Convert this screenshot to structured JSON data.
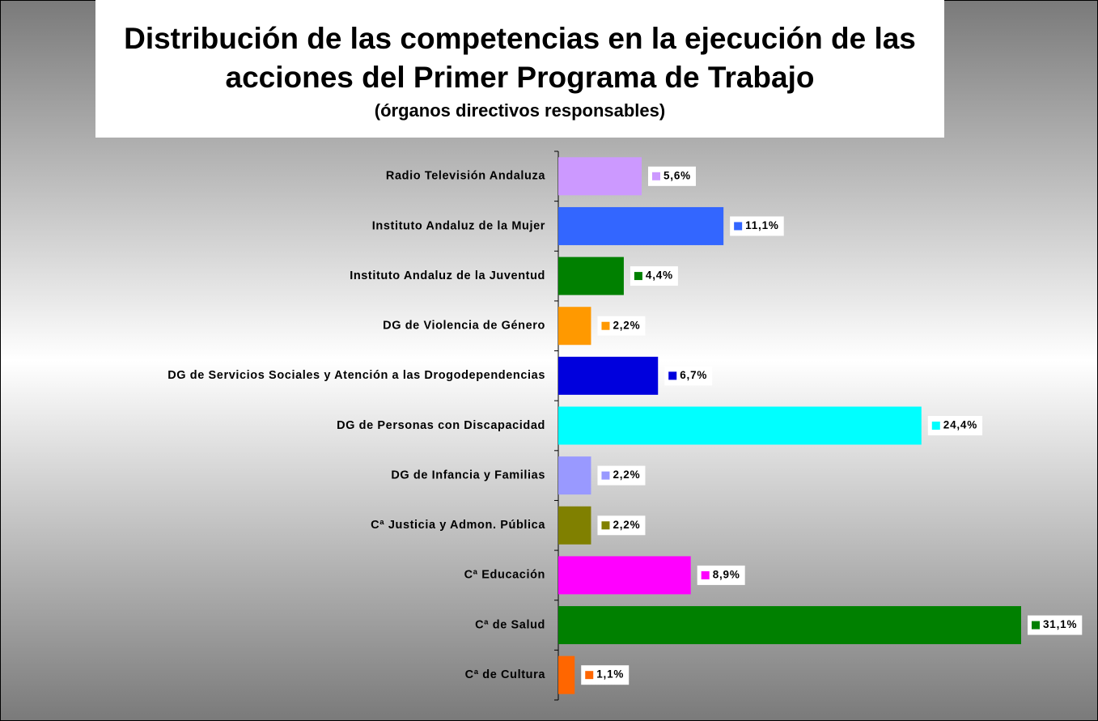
{
  "chart_data": {
    "type": "hbar",
    "title": "Distribución de las competencias en la ejecución de las acciones del Primer Programa de Trabajo",
    "subtitle": "(órganos directivos responsables)",
    "categories": [
      "Radio Televisión Andaluza",
      "Instituto Andaluz de la Mujer",
      "Instituto Andaluz de la Juventud",
      "DG de Violencia de Género",
      "DG de Servicios Sociales y Atención a las Drogodependencias",
      "DG de Personas con Discapacidad",
      "DG de Infancia y Familias",
      "Cª Justicia y Admon. Pública",
      "Cª Educación",
      "Cª de Salud",
      "Cª de Cultura"
    ],
    "values": [
      5.6,
      11.1,
      4.4,
      2.2,
      6.7,
      24.4,
      2.2,
      2.2,
      8.9,
      31.1,
      1.1
    ],
    "value_labels": [
      "5,6%",
      "11,1%",
      "4,4%",
      "2,2%",
      "6,7%",
      "24,4%",
      "2,2%",
      "2,2%",
      "8,9%",
      "31,1%",
      "1,1%"
    ],
    "colors": [
      "#cc99ff",
      "#3366ff",
      "#008000",
      "#ff9900",
      "#0000dd",
      "#00ffff",
      "#9999ff",
      "#808000",
      "#ff00ff",
      "#008000",
      "#ff6600"
    ]
  }
}
